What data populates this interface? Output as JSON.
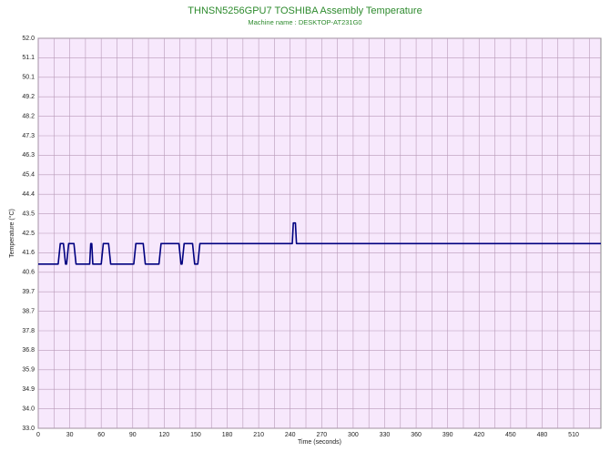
{
  "chart_data": {
    "type": "line",
    "title": "THNSN5256GPU7 TOSHIBA Assembly Temperature",
    "subtitle": "Machine name : DESKTOP-AT231G0",
    "x_label": "Time (seconds)",
    "y_label": "Temperature (°C)",
    "x": [
      0,
      19,
      21,
      24,
      26,
      27,
      29,
      34,
      36,
      49,
      50,
      51,
      52,
      60,
      62,
      67,
      69,
      91,
      93,
      100,
      102,
      115,
      117,
      134,
      136,
      137,
      139,
      147,
      149,
      152,
      154,
      242,
      243,
      245,
      246,
      536
    ],
    "values": [
      41,
      41,
      42,
      42,
      41,
      41,
      42,
      42,
      41,
      41,
      42,
      42,
      41,
      41,
      42,
      42,
      41,
      41,
      42,
      42,
      41,
      41,
      42,
      42,
      41,
      41,
      42,
      42,
      41,
      41,
      42,
      42,
      43,
      43,
      42,
      42
    ],
    "color": "#000080",
    "xlim": [
      0,
      536
    ],
    "xticks": [
      0,
      30,
      60,
      90,
      120,
      150,
      180,
      210,
      240,
      270,
      300,
      330,
      360,
      390,
      420,
      450,
      480,
      510
    ],
    "ylim": [
      33,
      52
    ],
    "yticks": [
      {
        "value": 33,
        "label": "33.0"
      },
      {
        "value": 33.95,
        "label": "34.0"
      },
      34.9,
      35.85,
      36.8,
      37.75,
      38.7,
      39.65,
      40.6,
      41.55,
      42.5,
      43.45,
      44.4,
      45.35,
      46.3,
      47.25,
      48.2,
      49.15,
      50.1,
      51.05,
      {
        "value": 52,
        "label": "52.0"
      }
    ],
    "ytick_labels": [
      "33.0",
      "34.0",
      "34.9",
      "35.9",
      "36.8",
      "37.8",
      "38.7",
      "39.7",
      "40.6",
      "41.6",
      "42.5",
      "43.5",
      "44.4",
      "45.4",
      "46.3",
      "47.3",
      "48.2",
      "49.2",
      "50.1",
      "51.1",
      "52.0"
    ],
    "grid": true,
    "x_minor_grid": true,
    "plot_background": "#f7e8fc",
    "grid_color": "#b89ab8"
  }
}
